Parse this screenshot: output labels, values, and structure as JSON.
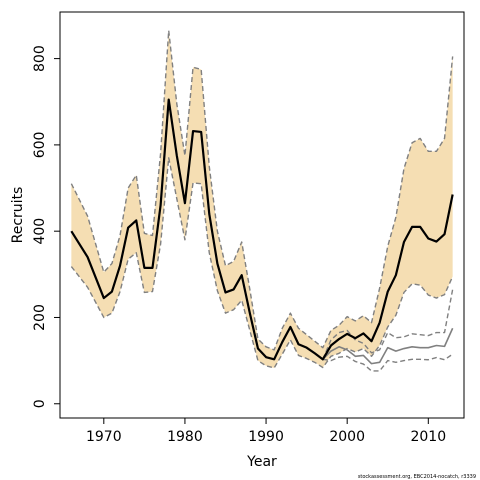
{
  "chart_data": {
    "type": "line",
    "title": "",
    "xlabel": "Year",
    "ylabel": "Recruits",
    "xlim": [
      1964.6,
      2014.4
    ],
    "ylim": [
      -33,
      908
    ],
    "xticks": [
      1970,
      1980,
      1990,
      2000,
      2010
    ],
    "yticks": [
      0,
      200,
      400,
      600,
      800
    ],
    "grid": false,
    "legend": "none",
    "credit": "stockassessment.org, EBC2014-nocatch, r3339",
    "colors": {
      "band": "#f5deb3",
      "main": "#000000",
      "secondary": "#808080"
    },
    "series": [
      {
        "x": [
          1966,
          1968,
          1970,
          1971,
          1972,
          1973,
          1974,
          1975,
          1976,
          1977,
          1978,
          1979,
          1980,
          1981,
          1982,
          1983,
          1984,
          1985,
          1986,
          1987,
          1988,
          1989,
          1990,
          1991,
          1992,
          1993,
          1994,
          1995,
          1996,
          1997,
          1998,
          1999,
          2000,
          2001,
          2002,
          2003,
          2004,
          2005,
          2006,
          2007,
          2008,
          2009,
          2010,
          2011,
          2012,
          2013
        ],
        "values": [
          400,
          340,
          245,
          260,
          320,
          408,
          425,
          315,
          315,
          460,
          705,
          575,
          465,
          632,
          630,
          440,
          325,
          258,
          265,
          298,
          210,
          128,
          108,
          103,
          143,
          178,
          138,
          130,
          117,
          103,
          135,
          150,
          162,
          152,
          163,
          145,
          188,
          260,
          298,
          375,
          410,
          410,
          383,
          376,
          393,
          485
        ],
        "upper": [
          510,
          435,
          305,
          325,
          390,
          500,
          530,
          395,
          390,
          580,
          865,
          695,
          575,
          780,
          775,
          550,
          400,
          320,
          330,
          375,
          265,
          150,
          132,
          125,
          175,
          210,
          175,
          160,
          145,
          130,
          170,
          182,
          202,
          192,
          204,
          188,
          268,
          365,
          432,
          545,
          605,
          615,
          585,
          585,
          615,
          805
        ],
        "lower": [
          318,
          270,
          200,
          210,
          260,
          335,
          350,
          258,
          260,
          370,
          570,
          475,
          380,
          512,
          510,
          350,
          262,
          210,
          218,
          240,
          170,
          100,
          88,
          83,
          115,
          148,
          112,
          105,
          96,
          84,
          110,
          117,
          128,
          120,
          128,
          110,
          135,
          178,
          205,
          258,
          278,
          275,
          252,
          245,
          253,
          295
        ]
      },
      {
        "x": [
          1997,
          1998,
          1999,
          2000,
          2001,
          2002,
          2003,
          2004,
          2005,
          2006,
          2007,
          2008,
          2009,
          2010,
          2011,
          2012,
          2013
        ],
        "values": [
          103,
          122,
          132,
          125,
          110,
          112,
          93,
          96,
          130,
          122,
          128,
          132,
          130,
          130,
          135,
          133,
          175
        ],
        "upper": [
          103,
          148,
          165,
          170,
          148,
          140,
          118,
          125,
          165,
          153,
          155,
          162,
          160,
          158,
          165,
          165,
          265
        ],
        "lower": [
          103,
          100,
          108,
          110,
          98,
          92,
          76,
          76,
          100,
          96,
          100,
          103,
          103,
          102,
          107,
          102,
          115
        ]
      }
    ]
  }
}
